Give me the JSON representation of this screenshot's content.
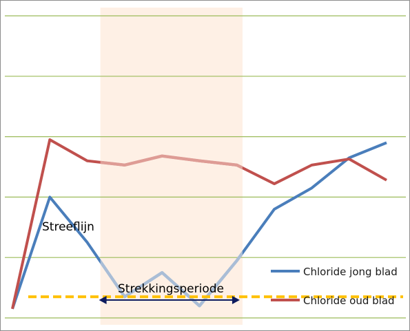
{
  "chart_data": {
    "type": "line",
    "x": [
      1,
      2,
      3,
      4,
      5,
      6,
      7,
      8,
      9,
      10,
      11
    ],
    "ylim": [
      0,
      5
    ],
    "grid": true,
    "series": [
      {
        "name": "Chloride jong blad",
        "color": "#4a7ebb",
        "faded_color": "#a9bdd6",
        "values": [
          0.15,
          2.0,
          1.25,
          0.35,
          0.75,
          0.2,
          0.95,
          1.8,
          2.15,
          2.65,
          2.9
        ]
      },
      {
        "name": "Chloride oud blad",
        "color": "#c0504d",
        "faded_color": "#de9c95",
        "values": [
          0.15,
          2.95,
          2.6,
          2.53,
          2.68,
          2.6,
          2.53,
          2.22,
          2.53,
          2.63,
          2.28
        ]
      }
    ],
    "target_line": {
      "label": "Streeflijn",
      "value": 0.35,
      "color": "#ffc000"
    },
    "highlight_period": {
      "label": "Strekkingsperiode",
      "x_start": 3.35,
      "x_end": 7.15,
      "color": "#fdeada"
    },
    "legend_position": "bottom-right",
    "grid_color": "#9bbb59"
  }
}
